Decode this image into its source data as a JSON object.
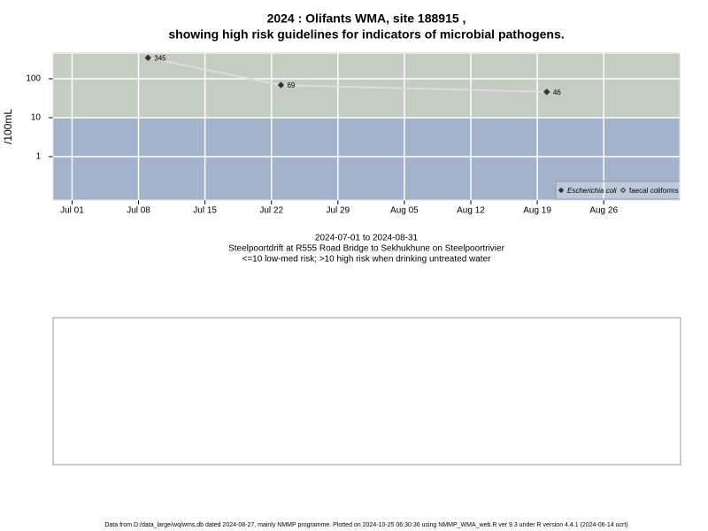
{
  "chart_data": {
    "type": "line",
    "title": [
      "2024 : Olifants WMA, site 188915 ,",
      "showing high risk guidelines for indicators of microbial pathogens."
    ],
    "y_label": "/100mL",
    "log_y": true,
    "grid": true,
    "x": [
      "2024-07-09",
      "2024-07-23",
      "2024-08-20"
    ],
    "series": [
      {
        "name": "Escherichia coli",
        "color": "#333333",
        "marker": "filled-diamond",
        "values": [
          345,
          69,
          46
        ]
      },
      {
        "name": "faecal coliforms",
        "color": "#333333",
        "marker": "hollow-diamond",
        "values": [
          null,
          null,
          null
        ]
      }
    ],
    "line_color": "#dddddd",
    "xlim": [
      "2024-06-29",
      "2024-09-03"
    ],
    "xticks": [
      {
        "value": "2024-07-01",
        "label": "Jul 01"
      },
      {
        "value": "2024-07-08",
        "label": "Jul 08"
      },
      {
        "value": "2024-07-15",
        "label": "Jul 15"
      },
      {
        "value": "2024-07-22",
        "label": "Jul 22"
      },
      {
        "value": "2024-07-29",
        "label": "Jul 29"
      },
      {
        "value": "2024-08-05",
        "label": "Aug 05"
      },
      {
        "value": "2024-08-12",
        "label": "Aug 12"
      },
      {
        "value": "2024-08-19",
        "label": "Aug 19"
      },
      {
        "value": "2024-08-26",
        "label": "Aug 26"
      }
    ],
    "ylim": [
      0.077,
      456
    ],
    "yticks": [
      1,
      10,
      100
    ],
    "bands": [
      {
        "below": 10,
        "color": "#a3b3cc"
      },
      {
        "above": 10,
        "color": "#c4cdc1"
      }
    ],
    "legend": "bottom-right",
    "notes": [
      "2024-07-01 to 2024-08-31",
      "Steelpoortdrift at R555 Road Bridge to Sekhukhune on Steelpoortrivier",
      "<=10 low-med risk; >10 high risk when drinking untreated water"
    ],
    "footer": "Data from D:/data_large/wq/wms.db dated 2024-08-27, mainly NMMP programme. Plotted on 2024-10-25 06:30:36 using NMMP_WMA_web.R ver 9.3 under R version 4.4.1 (2024-06-14 ucrt)"
  }
}
